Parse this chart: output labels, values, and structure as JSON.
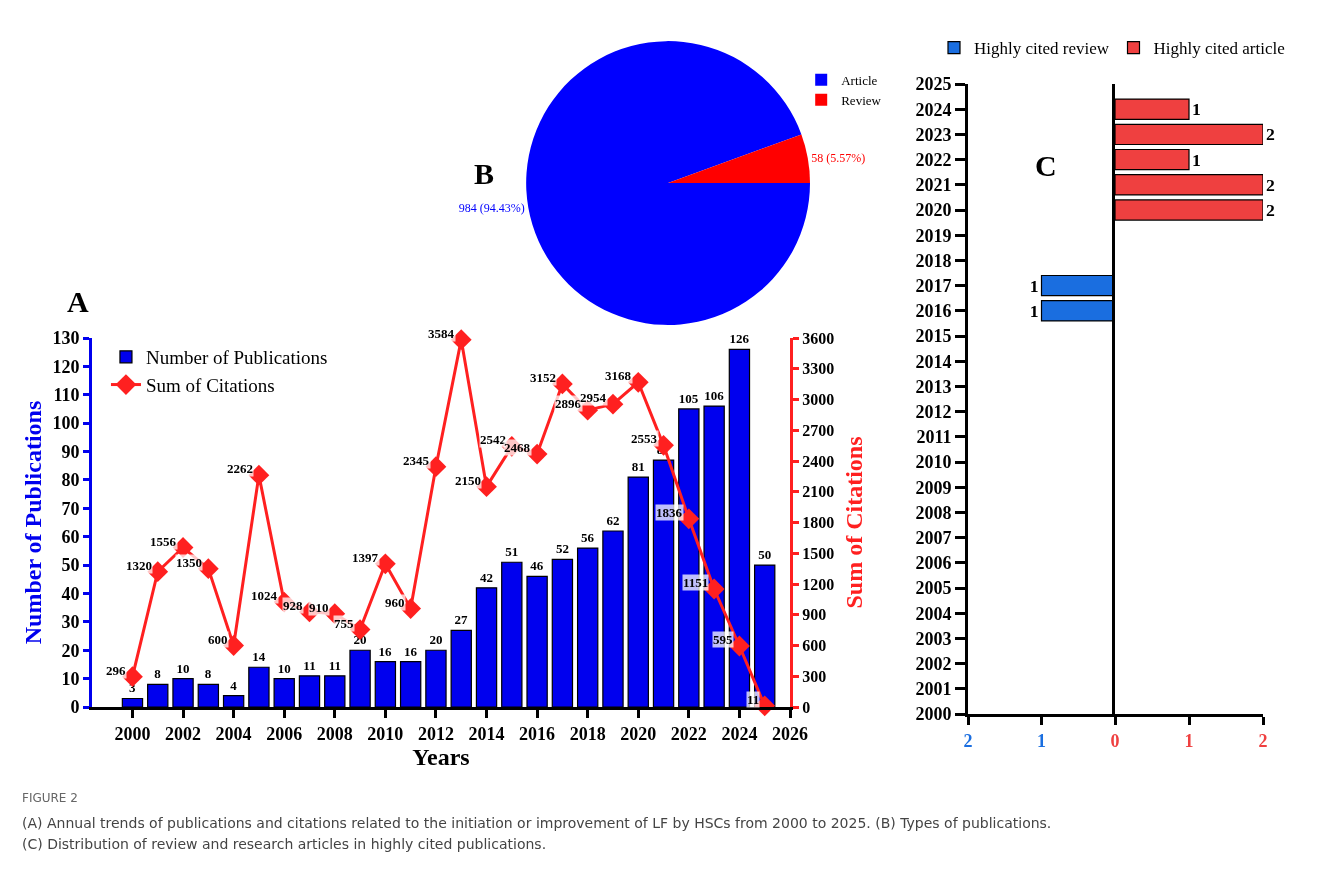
{
  "chart_data": [
    {
      "type": "bar",
      "annotations": [
        "A",
        "FIGURE 2",
        "(A) Annual trends of publications and citations related to the initiation or improvement of LF by HSCs from 2000 to 2025. (B) Types of publications.",
        "(C) Distribution of review and research articles in highly cited publications."
      ],
      "xlabel": "Years",
      "ylabel": "Number of Publications",
      "y2label": "Sum of Citations",
      "x": [
        2000,
        2001,
        2002,
        2003,
        2004,
        2005,
        2006,
        2007,
        2008,
        2009,
        2010,
        2011,
        2012,
        2013,
        2014,
        2015,
        2016,
        2017,
        2018,
        2019,
        2020,
        2021,
        2022,
        2023,
        2024,
        2025
      ],
      "series": [
        {
          "name": "Number of Publications",
          "color": "#0000ee",
          "values": [
            3,
            8,
            10,
            8,
            4,
            14,
            10,
            11,
            11,
            20,
            16,
            16,
            20,
            27,
            42,
            51,
            46,
            52,
            56,
            62,
            81,
            87,
            105,
            106,
            126,
            50
          ]
        },
        {
          "name": "Sum of Citations",
          "type": "line",
          "axis": "y2",
          "color": "#ff2020",
          "values": [
            296,
            1320,
            1556,
            1350,
            600,
            2262,
            1024,
            928,
            910,
            755,
            1397,
            960,
            2345,
            3584,
            2150,
            2542,
            2468,
            3152,
            2896,
            2954,
            3168,
            2553,
            1836,
            1151,
            595,
            11
          ]
        }
      ],
      "xlim": [
        1998.4,
        2026
      ],
      "xticks": [
        2000,
        2002,
        2004,
        2006,
        2008,
        2010,
        2012,
        2014,
        2016,
        2018,
        2020,
        2022,
        2024,
        2026
      ],
      "ylim": [
        0,
        130
      ],
      "yticks": [
        0,
        10,
        20,
        30,
        40,
        50,
        60,
        70,
        80,
        90,
        100,
        110,
        120,
        130
      ],
      "y2lim": [
        0,
        3600
      ],
      "y2ticks": [
        0,
        300,
        600,
        900,
        1200,
        1500,
        1800,
        2100,
        2400,
        2700,
        3000,
        3300,
        3600
      ],
      "data_labels": true,
      "marker": "diamond",
      "line_style": "solid",
      "grid": false,
      "legend": "top left"
    },
    {
      "type": "pie",
      "annotations": [
        "B"
      ],
      "categories": [
        "Article",
        "Review"
      ],
      "values": [
        984,
        58
      ],
      "colors": [
        "#0000ff",
        "#ff0000"
      ],
      "value_labels": [
        "984 (94.43%)",
        "58 (5.57%)"
      ],
      "legend": "top right"
    },
    {
      "type": "bar",
      "orientation": "horizontal",
      "annotations": [
        "C"
      ],
      "categories": [
        "2025",
        "2024",
        "2023",
        "2022",
        "2021",
        "2020",
        "2019",
        "2018",
        "2017",
        "2016",
        "2015",
        "2014",
        "2013",
        "2012",
        "2011",
        "2010",
        "2009",
        "2008",
        "2007",
        "2006",
        "2005",
        "2004",
        "2003",
        "2002",
        "2001",
        "2000"
      ],
      "series": [
        {
          "name": "Highly cited review",
          "color": "#1a6ee0",
          "values": [
            null,
            null,
            null,
            null,
            null,
            null,
            null,
            null,
            1,
            1,
            null,
            null,
            null,
            null,
            null,
            null,
            null,
            null,
            null,
            null,
            null,
            null,
            null,
            null,
            null,
            null
          ]
        }
      ],
      "xlim": [
        2,
        0
      ],
      "xticks": [
        2,
        1
      ],
      "data_labels": true,
      "grid": false,
      "legend": "top"
    },
    {
      "type": "bar",
      "orientation": "horizontal",
      "categories": [
        "2025",
        "2024",
        "2023",
        "2022",
        "2021",
        "2020",
        "2019",
        "2018",
        "2017",
        "2016",
        "2015",
        "2014",
        "2013",
        "2012",
        "2011",
        "2010",
        "2009",
        "2008",
        "2007",
        "2006",
        "2005",
        "2004",
        "2003",
        "2002",
        "2001",
        "2000"
      ],
      "series": [
        {
          "name": "Highly cited article",
          "color": "#ef4040",
          "values": [
            null,
            1,
            2,
            1,
            2,
            2,
            null,
            null,
            null,
            null,
            null,
            null,
            null,
            null,
            null,
            null,
            null,
            null,
            null,
            null,
            null,
            null,
            null,
            null,
            null,
            null
          ]
        }
      ],
      "xlim": [
        0,
        2
      ],
      "xticks": [
        0,
        1,
        2
      ],
      "data_labels": true,
      "tick_labels": "x",
      "grid": false,
      "legend": "top"
    }
  ]
}
